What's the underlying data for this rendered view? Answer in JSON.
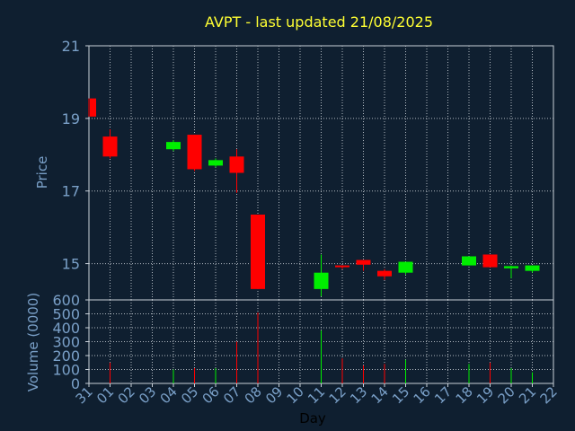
{
  "chart_data": {
    "type": "candlestick",
    "title": "AVPT - last updated 21/08/2025",
    "xlabel": "Day",
    "price_panel": {
      "ylabel": "Price",
      "ylim": [
        14,
        21
      ],
      "yticks": [
        15,
        17,
        19,
        21
      ],
      "grid": true
    },
    "volume_panel": {
      "ylabel": "Volume (0000)",
      "ylim": [
        0,
        600
      ],
      "yticks": [
        0,
        100,
        200,
        300,
        400,
        500,
        600
      ],
      "grid": true
    },
    "categories": [
      "31",
      "01",
      "02",
      "03",
      "04",
      "05",
      "06",
      "07",
      "08",
      "09",
      "10",
      "11",
      "12",
      "13",
      "14",
      "15",
      "16",
      "17",
      "18",
      "19",
      "20",
      "21",
      "22"
    ],
    "candles": [
      {
        "day": "31",
        "open": 19.55,
        "close": 19.05,
        "high": 19.55,
        "low": 19.05,
        "volume": 0
      },
      {
        "day": "01",
        "open": 18.5,
        "close": 17.95,
        "high": 18.7,
        "low": 17.9,
        "volume": 150
      },
      {
        "day": "04",
        "open": 18.15,
        "close": 18.35,
        "high": 18.4,
        "low": 18.1,
        "volume": 100
      },
      {
        "day": "05",
        "open": 18.55,
        "close": 17.6,
        "high": 18.55,
        "low": 17.55,
        "volume": 110
      },
      {
        "day": "06",
        "open": 17.7,
        "close": 17.85,
        "high": 17.9,
        "low": 17.65,
        "volume": 110
      },
      {
        "day": "07",
        "open": 17.95,
        "close": 17.5,
        "high": 18.15,
        "low": 16.95,
        "volume": 300
      },
      {
        "day": "08",
        "open": 16.35,
        "close": 14.3,
        "high": 16.35,
        "low": 14.3,
        "volume": 510
      },
      {
        "day": "11",
        "open": 14.3,
        "close": 14.75,
        "high": 15.25,
        "low": 14.1,
        "volume": 380
      },
      {
        "day": "12",
        "open": 14.95,
        "close": 14.9,
        "high": 14.95,
        "low": 14.85,
        "volume": 180
      },
      {
        "day": "13",
        "open": 15.1,
        "close": 14.97,
        "high": 15.1,
        "low": 14.8,
        "volume": 130
      },
      {
        "day": "14",
        "open": 14.8,
        "close": 14.65,
        "high": 14.85,
        "low": 14.55,
        "volume": 140
      },
      {
        "day": "15",
        "open": 14.75,
        "close": 15.05,
        "high": 15.05,
        "low": 14.7,
        "volume": 170
      },
      {
        "day": "18",
        "open": 14.95,
        "close": 15.2,
        "high": 15.2,
        "low": 14.95,
        "volume": 140
      },
      {
        "day": "19",
        "open": 15.25,
        "close": 14.9,
        "high": 15.25,
        "low": 14.9,
        "volume": 150
      },
      {
        "day": "20",
        "open": 14.87,
        "close": 14.93,
        "high": 14.95,
        "low": 14.6,
        "volume": 110
      },
      {
        "day": "21",
        "open": 14.8,
        "close": 14.95,
        "high": 14.95,
        "low": 14.75,
        "volume": 80
      }
    ]
  },
  "colors": {
    "background": "#0f1f30",
    "plot_background": "#0f1f30",
    "up": "#00ee00",
    "down": "#ff0000",
    "grid": "#b0b8c0",
    "axis_text": "#7aa0c8",
    "title": "#ffff33",
    "frame": "#c8d0d8"
  }
}
